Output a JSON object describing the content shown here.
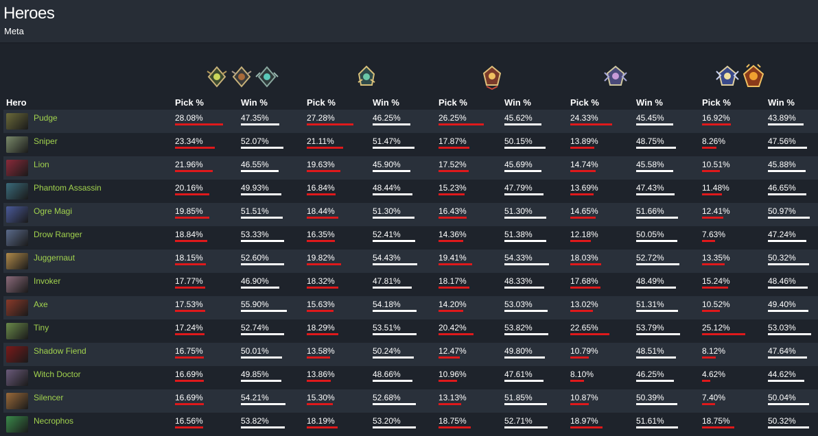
{
  "header": {
    "title": "Heroes",
    "subtitle": "Meta"
  },
  "colors": {
    "pick_bar": "#e0191b",
    "win_bar": "#ffffff",
    "hero_name": "#a2d34e"
  },
  "rank_icons": [
    {
      "name": "herald-rank-icon"
    },
    {
      "name": "guardian-rank-icon"
    },
    {
      "name": "crusader-rank-icon"
    },
    {
      "name": "archon-rank-icon"
    },
    {
      "name": "legend-rank-icon"
    },
    {
      "name": "ancient-rank-icon"
    },
    {
      "name": "divine-rank-icon"
    },
    {
      "name": "immortal-rank-icon"
    }
  ],
  "columns": {
    "hero": "Hero",
    "groups": [
      {
        "pick": "Pick %",
        "win": "Win %"
      },
      {
        "pick": "Pick %",
        "win": "Win %"
      },
      {
        "pick": "Pick %",
        "win": "Win %"
      },
      {
        "pick": "Pick %",
        "win": "Win %"
      },
      {
        "pick": "Pick %",
        "win": "Win %"
      }
    ]
  },
  "rows": [
    {
      "hero": "Pudge",
      "avatar": "#6b6a3a",
      "stats": [
        [
          "28.08%",
          "47.35%"
        ],
        [
          "27.28%",
          "46.25%"
        ],
        [
          "26.25%",
          "45.62%"
        ],
        [
          "24.33%",
          "45.45%"
        ],
        [
          "16.92%",
          "43.89%"
        ]
      ]
    },
    {
      "hero": "Sniper",
      "avatar": "#7a8a6a",
      "stats": [
        [
          "23.34%",
          "52.07%"
        ],
        [
          "21.11%",
          "51.47%"
        ],
        [
          "17.87%",
          "50.15%"
        ],
        [
          "13.89%",
          "48.75%"
        ],
        [
          "8.26%",
          "47.56%"
        ]
      ]
    },
    {
      "hero": "Lion",
      "avatar": "#8a2a3a",
      "stats": [
        [
          "21.96%",
          "46.55%"
        ],
        [
          "19.63%",
          "45.90%"
        ],
        [
          "17.52%",
          "45.69%"
        ],
        [
          "14.74%",
          "45.58%"
        ],
        [
          "10.51%",
          "45.88%"
        ]
      ]
    },
    {
      "hero": "Phantom Assassin",
      "avatar": "#3a6a7a",
      "stats": [
        [
          "20.16%",
          "49.93%"
        ],
        [
          "16.84%",
          "48.44%"
        ],
        [
          "15.23%",
          "47.79%"
        ],
        [
          "13.69%",
          "47.43%"
        ],
        [
          "11.48%",
          "46.65%"
        ]
      ]
    },
    {
      "hero": "Ogre Magi",
      "avatar": "#4a5a9a",
      "stats": [
        [
          "19.85%",
          "51.51%"
        ],
        [
          "18.44%",
          "51.30%"
        ],
        [
          "16.43%",
          "51.30%"
        ],
        [
          "14.65%",
          "51.66%"
        ],
        [
          "12.41%",
          "50.97%"
        ]
      ]
    },
    {
      "hero": "Drow Ranger",
      "avatar": "#5a6a8a",
      "stats": [
        [
          "18.84%",
          "53.33%"
        ],
        [
          "16.35%",
          "52.41%"
        ],
        [
          "14.36%",
          "51.38%"
        ],
        [
          "12.18%",
          "50.05%"
        ],
        [
          "7.63%",
          "47.24%"
        ]
      ]
    },
    {
      "hero": "Juggernaut",
      "avatar": "#b08a4a",
      "stats": [
        [
          "18.15%",
          "52.60%"
        ],
        [
          "19.82%",
          "54.43%"
        ],
        [
          "19.41%",
          "54.33%"
        ],
        [
          "18.03%",
          "52.72%"
        ],
        [
          "13.35%",
          "50.32%"
        ]
      ]
    },
    {
      "hero": "Invoker",
      "avatar": "#8a6a7a",
      "stats": [
        [
          "17.77%",
          "46.90%"
        ],
        [
          "18.32%",
          "47.81%"
        ],
        [
          "18.17%",
          "48.33%"
        ],
        [
          "17.68%",
          "48.49%"
        ],
        [
          "15.24%",
          "48.46%"
        ]
      ]
    },
    {
      "hero": "Axe",
      "avatar": "#8a3a2a",
      "stats": [
        [
          "17.53%",
          "55.90%"
        ],
        [
          "15.63%",
          "54.18%"
        ],
        [
          "14.20%",
          "53.03%"
        ],
        [
          "13.02%",
          "51.31%"
        ],
        [
          "10.52%",
          "49.40%"
        ]
      ]
    },
    {
      "hero": "Tiny",
      "avatar": "#6a8a4a",
      "stats": [
        [
          "17.24%",
          "52.74%"
        ],
        [
          "18.29%",
          "53.51%"
        ],
        [
          "20.42%",
          "53.82%"
        ],
        [
          "22.65%",
          "53.79%"
        ],
        [
          "25.12%",
          "53.03%"
        ]
      ]
    },
    {
      "hero": "Shadow Fiend",
      "avatar": "#7a1a1a",
      "stats": [
        [
          "16.75%",
          "50.01%"
        ],
        [
          "13.58%",
          "50.24%"
        ],
        [
          "12.47%",
          "49.80%"
        ],
        [
          "10.79%",
          "48.51%"
        ],
        [
          "8.12%",
          "47.64%"
        ]
      ]
    },
    {
      "hero": "Witch Doctor",
      "avatar": "#6a5a7a",
      "stats": [
        [
          "16.69%",
          "49.85%"
        ],
        [
          "13.86%",
          "48.66%"
        ],
        [
          "10.96%",
          "47.61%"
        ],
        [
          "8.10%",
          "46.25%"
        ],
        [
          "4.62%",
          "44.62%"
        ]
      ]
    },
    {
      "hero": "Silencer",
      "avatar": "#9a6a3a",
      "stats": [
        [
          "16.69%",
          "54.21%"
        ],
        [
          "15.30%",
          "52.68%"
        ],
        [
          "13.13%",
          "51.85%"
        ],
        [
          "10.87%",
          "50.39%"
        ],
        [
          "7.40%",
          "50.04%"
        ]
      ]
    },
    {
      "hero": "Necrophos",
      "avatar": "#3a8a4a",
      "stats": [
        [
          "16.56%",
          "53.82%"
        ],
        [
          "18.19%",
          "53.20%"
        ],
        [
          "18.75%",
          "52.71%"
        ],
        [
          "18.97%",
          "51.61%"
        ],
        [
          "18.75%",
          "50.32%"
        ]
      ]
    }
  ]
}
